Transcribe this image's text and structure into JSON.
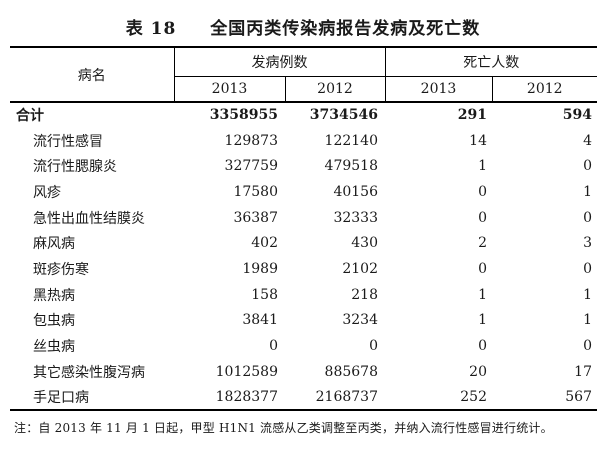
{
  "title": {
    "label": "表 18",
    "text": "全国丙类传染病报告发病及死亡数"
  },
  "table": {
    "header": {
      "disease": "病名",
      "cases_group": "发病例数",
      "deaths_group": "死亡人数",
      "years": [
        "2013",
        "2012",
        "2013",
        "2012"
      ]
    },
    "rows": [
      {
        "name": "合计",
        "cases_2013": "3358955",
        "cases_2012": "3734546",
        "deaths_2013": "291",
        "deaths_2012": "594"
      },
      {
        "name": "流行性感冒",
        "cases_2013": "129873",
        "cases_2012": "122140",
        "deaths_2013": "14",
        "deaths_2012": "4"
      },
      {
        "name": "流行性腮腺炎",
        "cases_2013": "327759",
        "cases_2012": "479518",
        "deaths_2013": "1",
        "deaths_2012": "0"
      },
      {
        "name": "风疹",
        "cases_2013": "17580",
        "cases_2012": "40156",
        "deaths_2013": "0",
        "deaths_2012": "1"
      },
      {
        "name": "急性出血性结膜炎",
        "cases_2013": "36387",
        "cases_2012": "32333",
        "deaths_2013": "0",
        "deaths_2012": "0"
      },
      {
        "name": "麻风病",
        "cases_2013": "402",
        "cases_2012": "430",
        "deaths_2013": "2",
        "deaths_2012": "3"
      },
      {
        "name": "斑疹伤寒",
        "cases_2013": "1989",
        "cases_2012": "2102",
        "deaths_2013": "0",
        "deaths_2012": "0"
      },
      {
        "name": "黑热病",
        "cases_2013": "158",
        "cases_2012": "218",
        "deaths_2013": "1",
        "deaths_2012": "1"
      },
      {
        "name": "包虫病",
        "cases_2013": "3841",
        "cases_2012": "3234",
        "deaths_2013": "1",
        "deaths_2012": "1"
      },
      {
        "name": "丝虫病",
        "cases_2013": "0",
        "cases_2012": "0",
        "deaths_2013": "0",
        "deaths_2012": "0"
      },
      {
        "name": "其它感染性腹泻病",
        "cases_2013": "1012589",
        "cases_2012": "885678",
        "deaths_2013": "20",
        "deaths_2012": "17"
      },
      {
        "name": "手足口病",
        "cases_2013": "1828377",
        "cases_2012": "2168737",
        "deaths_2013": "252",
        "deaths_2012": "567"
      }
    ],
    "note": "注：自 2013 年 11 月 1 日起，甲型 H1N1 流感从乙类调整至丙类，并纳入流行性感冒进行统计。"
  },
  "colors": {
    "text": "#1a1a1a",
    "border": "#000000",
    "background": "#ffffff"
  }
}
